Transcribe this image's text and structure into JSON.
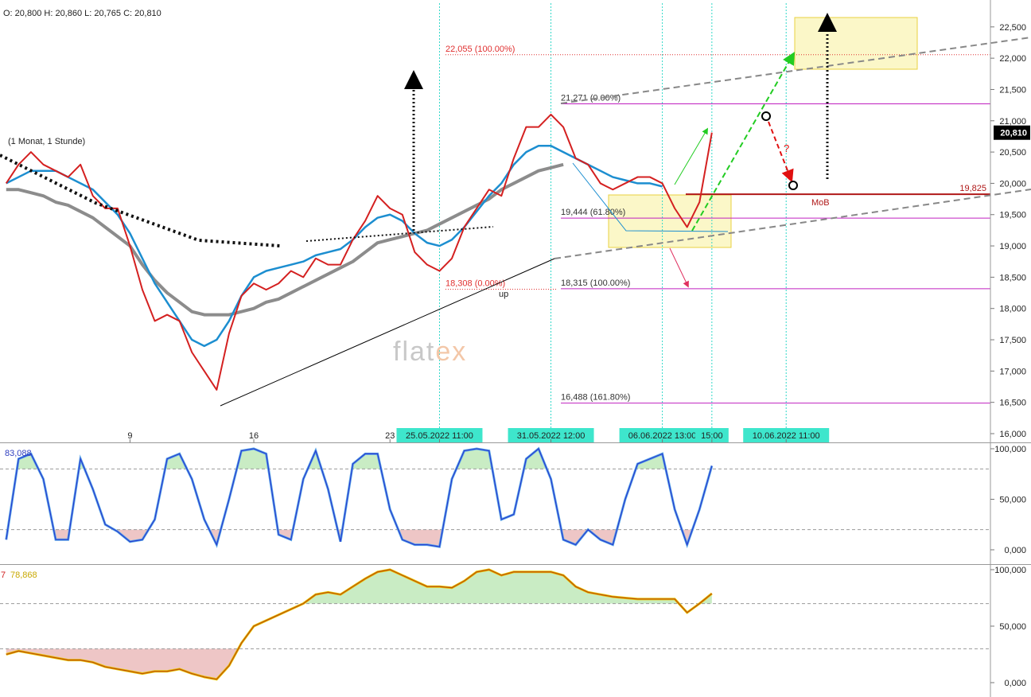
{
  "chart_data": [
    {
      "type": "line",
      "header": [
        "O: 20,800",
        "H: 20,860",
        "L: 20,765",
        "C: 20,810"
      ],
      "annotations": [
        "(1 Monat, 1 Stunde)",
        "up",
        "MoB",
        "?"
      ],
      "watermark": [
        "flat",
        "ex"
      ],
      "categories": [
        null,
        null,
        null,
        null,
        null,
        null,
        null,
        null,
        null,
        null,
        "9",
        null,
        null,
        null,
        null,
        null,
        null,
        null,
        null,
        null,
        "16",
        null,
        null,
        null,
        null,
        null,
        null,
        null,
        null,
        null,
        null,
        "23",
        null,
        null,
        null,
        "25.05.2022 11:00",
        null,
        null,
        null,
        null,
        null,
        null,
        null,
        null,
        "31.05.2022 12:00",
        null,
        null,
        null,
        null,
        null,
        null,
        null,
        null,
        "06.06.2022 13:00",
        null,
        null,
        null,
        "15:00",
        null,
        null,
        null,
        null,
        null,
        "10.06.2022 11:00"
      ],
      "series": [
        {
          "color": "#d42020",
          "values": [
            20000,
            20300,
            20500,
            20300,
            20200,
            20100,
            20300,
            19800,
            19600,
            19600,
            19000,
            18300,
            17800,
            17900,
            17800,
            17300,
            17000,
            16700,
            17600,
            18200,
            18400,
            18300,
            18400,
            18600,
            18500,
            18800,
            18700,
            18700,
            19100,
            19400,
            19800,
            19600,
            19500,
            18900,
            18700,
            18600,
            18800,
            19300,
            19600,
            19900,
            19800,
            20400,
            20900,
            20900,
            21100,
            20900,
            20400,
            20300,
            20000,
            19900,
            20000,
            20100,
            20100,
            20000,
            19600,
            19300,
            19700,
            20810,
            null,
            null,
            null,
            null,
            null,
            null
          ],
          "value_labels": [
            null,
            null,
            null,
            null,
            null,
            null,
            null,
            null,
            null,
            null,
            null,
            null,
            null,
            null,
            null,
            null,
            null,
            null,
            null,
            null,
            null,
            null,
            null,
            null,
            null,
            null,
            null,
            null,
            null,
            null,
            null,
            null,
            null,
            null,
            null,
            null,
            null,
            null,
            null,
            null,
            null,
            null,
            null,
            null,
            null,
            null,
            null,
            null,
            null,
            null,
            null,
            null,
            null,
            null,
            null,
            null,
            null,
            "20,810",
            null,
            null,
            null,
            null,
            null,
            null
          ]
        },
        {
          "color": "#1c8ed0",
          "values": [
            20000,
            20100,
            20200,
            20200,
            20200,
            20100,
            20000,
            19900,
            19700,
            19500,
            19200,
            18800,
            18400,
            18100,
            17800,
            17500,
            17400,
            17500,
            17800,
            18200,
            18500,
            18600,
            18650,
            18700,
            18750,
            18850,
            18900,
            18950,
            19100,
            19300,
            19450,
            19500,
            19400,
            19200,
            19050,
            19000,
            19100,
            19300,
            19550,
            19800,
            20000,
            20300,
            20500,
            20600,
            20600,
            20500,
            20400,
            20300,
            20200,
            20100,
            20050,
            20000,
            20000,
            19950,
            null,
            null,
            null,
            null,
            null,
            null,
            null,
            null,
            null,
            null
          ]
        },
        {
          "color": "#8c8c8c",
          "values": [
            19900,
            19900,
            19850,
            19800,
            19700,
            19650,
            19550,
            19450,
            19300,
            19150,
            19000,
            18700,
            18450,
            18250,
            18100,
            17950,
            17900,
            17900,
            17900,
            17950,
            18000,
            18100,
            18150,
            18250,
            18350,
            18450,
            18550,
            18650,
            18750,
            18900,
            19050,
            19100,
            19150,
            19200,
            19250,
            19350,
            19450,
            19550,
            19650,
            19750,
            19900,
            20000,
            20100,
            20200,
            20250,
            20300,
            null,
            null,
            null,
            null,
            null,
            null,
            null,
            null,
            null,
            null,
            null,
            null,
            null,
            null,
            null,
            null,
            null,
            null
          ]
        }
      ],
      "levels": [
        {
          "label": "22,055 (100.00%)",
          "value": 22055,
          "color": "#e03030",
          "style": "dotted"
        },
        {
          "label": "21,271 (0.00%)",
          "value": 21271,
          "color": "#c020c0",
          "style": "solid"
        },
        {
          "label": "19,444 (61.80%)",
          "value": 19444,
          "color": "#c020c0",
          "style": "solid"
        },
        {
          "label": "18,315 (100.00%)",
          "value": 18315,
          "color": "#c020c0",
          "style": "solid"
        },
        {
          "label": "16,488 (161.80%)",
          "value": 16488,
          "color": "#c020c0",
          "style": "solid"
        },
        {
          "label": "18,308 (0.00%)",
          "value": 18308,
          "color": "#e03030",
          "style": "dotted"
        },
        {
          "label": "19,825",
          "value": 19825,
          "color": "#b01818",
          "style": "thick"
        }
      ],
      "ylim": [
        15860,
        22930
      ],
      "yticks": [
        {
          "value": 16000,
          "label": "16,000"
        },
        {
          "value": 16500,
          "label": "16,500"
        },
        {
          "value": 17000,
          "label": "17,000"
        },
        {
          "value": 17500,
          "label": "17,500"
        },
        {
          "value": 18000,
          "label": "18,000"
        },
        {
          "value": 18500,
          "label": "18,500"
        },
        {
          "value": 19000,
          "label": "19,000"
        },
        {
          "value": 19500,
          "label": "19,500"
        },
        {
          "value": 20000,
          "label": "20,000"
        },
        {
          "value": 20500,
          "label": "20,500"
        },
        {
          "value": 21000,
          "label": "21,000"
        },
        {
          "value": 21500,
          "label": "21,500"
        },
        {
          "value": 22000,
          "label": "22,000"
        },
        {
          "value": 22500,
          "label": "22,500"
        }
      ]
    },
    {
      "type": "oscillator",
      "series": [
        {
          "color": "#2a3fd0",
          "values": [
            10,
            90,
            95,
            70,
            10,
            10,
            90,
            60,
            25,
            18,
            8,
            10,
            30,
            90,
            95,
            70,
            30,
            5,
            50,
            98,
            100,
            95,
            15,
            10,
            70,
            98,
            60,
            8,
            85,
            95,
            95,
            40,
            10,
            5,
            5,
            3,
            70,
            98,
            100,
            98,
            30,
            35,
            90,
            100,
            70,
            10,
            5,
            20,
            10,
            5,
            50,
            85,
            90,
            95,
            40,
            5,
            40,
            83.088,
            null,
            null,
            null,
            null,
            null,
            null
          ],
          "value_labels": [
            null,
            null,
            null,
            null,
            null,
            null,
            null,
            null,
            null,
            null,
            null,
            null,
            null,
            null,
            null,
            null,
            null,
            null,
            null,
            null,
            null,
            null,
            null,
            null,
            null,
            null,
            null,
            null,
            null,
            null,
            null,
            null,
            null,
            null,
            null,
            null,
            null,
            null,
            null,
            null,
            null,
            null,
            null,
            null,
            null,
            null,
            null,
            null,
            null,
            null,
            null,
            null,
            null,
            null,
            null,
            null,
            null,
            "83,088",
            null,
            null,
            null,
            null,
            null,
            null
          ]
        }
      ],
      "ref_lines": [
        20,
        80
      ],
      "ylim": [
        -13.4,
        105.5
      ],
      "yticks": [
        {
          "value": 0,
          "label": "0,000"
        },
        {
          "value": 50,
          "label": "50,000"
        },
        {
          "value": 100,
          "label": "100,000"
        }
      ]
    },
    {
      "type": "oscillator",
      "annotations": [
        "7"
      ],
      "series": [
        {
          "color": "#c0500c",
          "values": [
            25,
            28,
            26,
            24,
            22,
            20,
            20,
            18,
            14,
            12,
            10,
            8,
            10,
            10,
            12,
            8,
            5,
            3,
            15,
            35,
            50,
            55,
            60,
            65,
            70,
            78,
            80,
            78,
            85,
            92,
            98,
            100,
            95,
            90,
            85,
            85,
            84,
            90,
            98,
            100,
            95,
            98,
            98,
            98,
            98,
            95,
            85,
            80,
            78,
            76,
            75,
            74,
            74,
            74,
            74,
            62,
            70,
            78.868,
            null,
            null,
            null,
            null,
            null,
            null
          ],
          "value_labels": [
            null,
            null,
            null,
            null,
            null,
            null,
            null,
            null,
            null,
            null,
            null,
            null,
            null,
            null,
            null,
            null,
            null,
            null,
            null,
            null,
            null,
            null,
            null,
            null,
            null,
            null,
            null,
            null,
            null,
            null,
            null,
            null,
            null,
            null,
            null,
            null,
            null,
            null,
            null,
            null,
            null,
            null,
            null,
            null,
            null,
            null,
            null,
            null,
            null,
            null,
            null,
            null,
            null,
            null,
            null,
            null,
            null,
            "78,868",
            null,
            null,
            null,
            null,
            null,
            null
          ]
        }
      ],
      "ref_lines": [
        30,
        70
      ],
      "ylim": [
        -12.7,
        104.2
      ],
      "yticks": [
        {
          "value": 0,
          "label": "0,000"
        },
        {
          "value": 50,
          "label": "50,000"
        },
        {
          "value": 100,
          "label": "100,000"
        }
      ]
    }
  ]
}
